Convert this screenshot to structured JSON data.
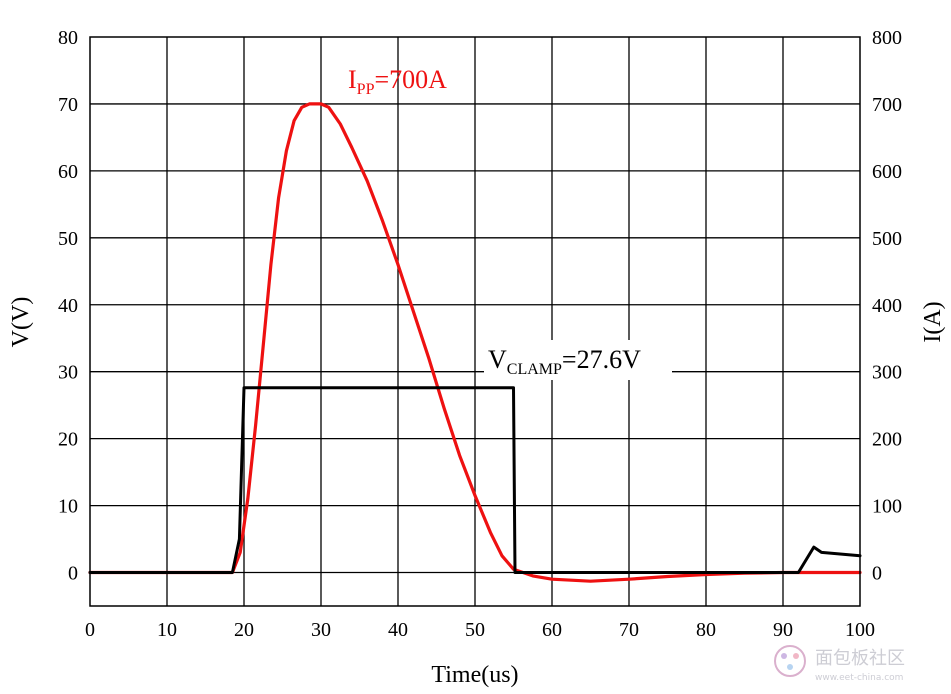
{
  "chart_data": {
    "type": "line",
    "xlabel": "Time(us)",
    "ylabel": "V(V)",
    "y2label": "I(A)",
    "xlim": [
      0,
      100
    ],
    "ylim": [
      -5,
      80
    ],
    "y2lim": [
      -50,
      800
    ],
    "x_ticks": [
      0,
      10,
      20,
      30,
      40,
      50,
      60,
      70,
      80,
      90,
      100
    ],
    "y_ticks": [
      0,
      10,
      20,
      30,
      40,
      50,
      60,
      70,
      80
    ],
    "y2_ticks": [
      0,
      100,
      200,
      300,
      400,
      500,
      600,
      700,
      800
    ],
    "grid": true,
    "series": [
      {
        "name": "",
        "axis": "left",
        "color": "#000000",
        "x": [
          0,
          18.5,
          19.4,
          20.0,
          20.1,
          55.0,
          55.2,
          92.0,
          94.0,
          95.0,
          100
        ],
        "y": [
          0,
          0,
          5,
          27.6,
          27.6,
          27.6,
          0,
          0,
          3.8,
          3.0,
          2.5
        ]
      },
      {
        "name": "",
        "axis": "right",
        "color": "#ee1111",
        "x": [
          0,
          18.5,
          19.5,
          20.5,
          21.5,
          22.5,
          23.5,
          24.5,
          25.5,
          26.5,
          27.5,
          28.5,
          30.0,
          31.0,
          32.5,
          34.0,
          36.0,
          38.0,
          40.0,
          42.0,
          44.0,
          46.0,
          48.0,
          50.0,
          52.0,
          53.5,
          55.0,
          57.5,
          60.0,
          65.0,
          70.0,
          75.0,
          80.0,
          85.0,
          90.0,
          100
        ],
        "y": [
          0,
          0,
          30,
          110,
          220,
          340,
          460,
          560,
          630,
          675,
          695,
          700,
          700,
          695,
          670,
          635,
          585,
          525,
          460,
          390,
          320,
          245,
          175,
          115,
          60,
          25,
          5,
          -5,
          -10,
          -13,
          -10,
          -6,
          -3,
          -1,
          0,
          0
        ]
      }
    ],
    "annotations": [
      {
        "base": "I",
        "sub": "PP",
        "rest": "=700A",
        "color": "#ee1111"
      },
      {
        "base": "V",
        "sub": "CLAMP",
        "rest": "=27.6V",
        "color": "#000000"
      }
    ]
  },
  "watermark": {
    "text": "面包板社区",
    "url": "www.eet-china.com"
  }
}
